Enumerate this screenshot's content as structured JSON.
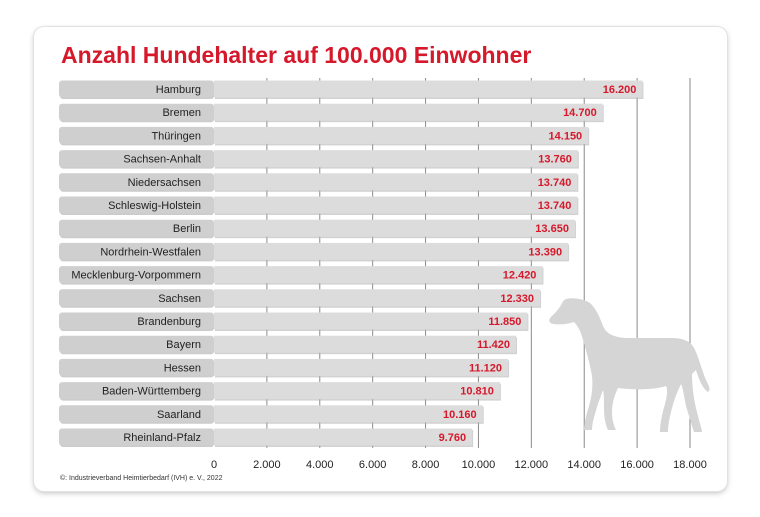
{
  "title": "Anzahl Hundehalter auf 100.000 Einwohner",
  "source": "©: Industrieverband Heimtierbedarf (IVH) e. V., 2022",
  "colors": {
    "accent": "#d6182b",
    "bar": "#dcdcdc",
    "label_band": "#cfcfcf",
    "grid": "#8a8a8a",
    "dog_silhouette": "#d5d5d5"
  },
  "decoration_icon": "dog-silhouette-icon",
  "chart_data": {
    "type": "bar",
    "orientation": "horizontal",
    "title": "Anzahl Hundehalter auf 100.000 Einwohner",
    "categories": [
      "Hamburg",
      "Bremen",
      "Thüringen",
      "Sachsen-Anhalt",
      "Niedersachsen",
      "Schleswig-Holstein",
      "Berlin",
      "Nordrhein-Westfalen",
      "Mecklenburg-Vorpommern",
      "Sachsen",
      "Brandenburg",
      "Bayern",
      "Hessen",
      "Baden-Württemberg",
      "Saarland",
      "Rheinland-Pfalz"
    ],
    "values": [
      16200,
      14700,
      14150,
      13760,
      13740,
      13740,
      13650,
      13390,
      12420,
      12330,
      11850,
      11420,
      11120,
      10810,
      10160,
      9760
    ],
    "value_labels": [
      "16.200",
      "14.700",
      "14.150",
      "13.760",
      "13.740",
      "13.740",
      "13.650",
      "13.390",
      "12.420",
      "12.330",
      "11.850",
      "11.420",
      "11.120",
      "10.810",
      "10.160",
      "9.760"
    ],
    "xlim": [
      0,
      18000
    ],
    "xticks": [
      0,
      2000,
      4000,
      6000,
      8000,
      10000,
      12000,
      14000,
      16000,
      18000
    ],
    "xtick_labels": [
      "0",
      "2.000",
      "4.000",
      "6.000",
      "8.000",
      "10.000",
      "12.000",
      "14.000",
      "16.000",
      "18.000"
    ],
    "xlabel": "",
    "ylabel": "",
    "grid": true,
    "legend": "none"
  }
}
